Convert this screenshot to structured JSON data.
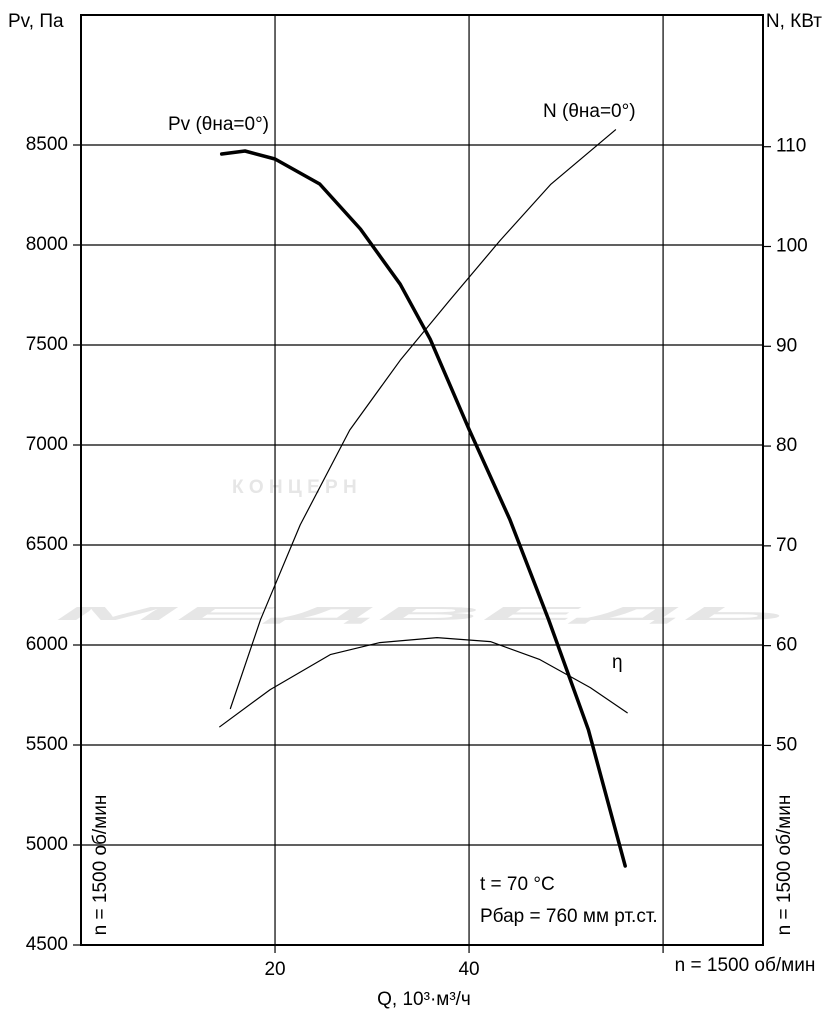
{
  "chart_data": {
    "type": "line",
    "y_label": "Pv, Па",
    "y2_label": "N, КВт",
    "x_label": "Q, 10³·м³/ч",
    "xlim": [
      0,
      70.3
    ],
    "xticks": [
      20,
      40
    ],
    "xgrid": [
      20,
      40,
      60
    ],
    "ylim": [
      4500,
      9150
    ],
    "yticks": [
      4500,
      5000,
      5500,
      6000,
      6500,
      7000,
      7500,
      8000,
      8500
    ],
    "y2lim": [
      30,
      123.2
    ],
    "y2ticks": [
      50,
      60,
      70,
      80,
      90,
      100,
      110
    ],
    "grid": true,
    "series": [
      {
        "name": "Pv (θна=0°)",
        "color": "#000000",
        "axis": "y",
        "width": 3.5,
        "x": [
          14.5,
          16.9,
          20,
          24.6,
          28.8,
          32.9,
          36.0,
          40,
          44.2,
          48.2,
          52.3,
          56.1
        ],
        "values": [
          8455,
          8470,
          8430,
          8305,
          8080,
          7804,
          7529,
          7078,
          6628,
          6127,
          5576,
          4895
        ]
      },
      {
        "name": "N (θна=0°)",
        "color": "#000000",
        "axis": "y2",
        "width": 1.2,
        "x": [
          15.4,
          18.5,
          22.6,
          27.7,
          32.9,
          38.0,
          43.2,
          48.4,
          55.1
        ],
        "values": [
          53.7,
          62.6,
          72.1,
          81.6,
          88.6,
          94.6,
          100.6,
          106.2,
          111.7
        ]
      },
      {
        "name": "η",
        "color": "#000000",
        "axis": "y",
        "width": 1.2,
        "x": [
          14.3,
          19.5,
          25.7,
          30.8,
          36.7,
          42.2,
          47.3,
          52.5,
          56.3
        ],
        "values": [
          5591,
          5777,
          5952,
          6012,
          6037,
          6017,
          5927,
          5787,
          5661
        ]
      }
    ],
    "annotations": [
      "t = 70 °C",
      "Рбар = 760 мм рт.ст."
    ],
    "speed": "n = 1500 об/мин",
    "watermark": [
      "К О Н Ц Е Р Н",
      "МЕДВЕДЬ"
    ]
  }
}
